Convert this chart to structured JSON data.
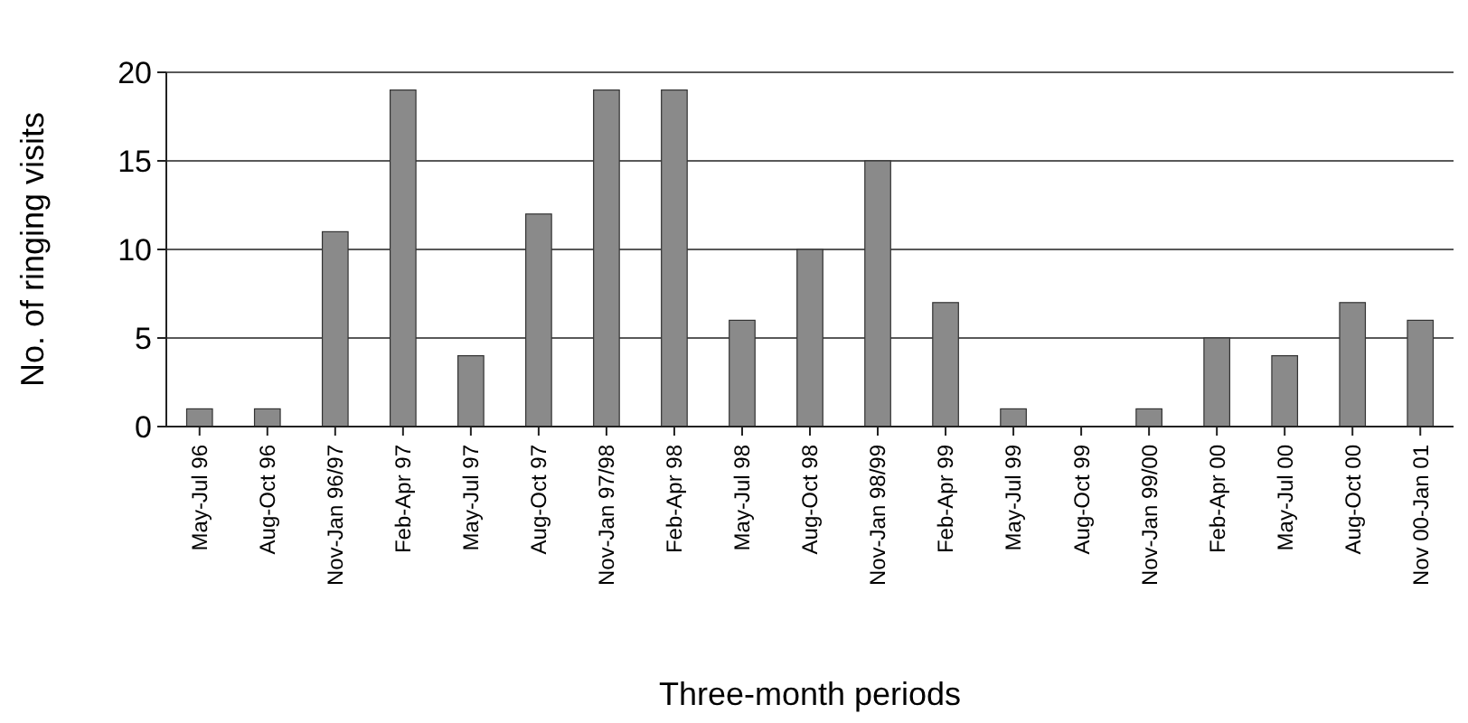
{
  "chart_data": {
    "type": "bar",
    "xlabel": "Three-month periods",
    "ylabel": "No. of ringing visits",
    "categories": [
      "May-Jul 96",
      "Aug-Oct 96",
      "Nov-Jan 96/97",
      "Feb-Apr 97",
      "May-Jul 97",
      "Aug-Oct 97",
      "Nov-Jan 97/98",
      "Feb-Apr 98",
      "May-Jul 98",
      "Aug-Oct 98",
      "Nov-Jan 98/99",
      "Feb-Apr 99",
      "May-Jul 99",
      "Aug-Oct 99",
      "Nov-Jan 99/00",
      "Feb-Apr 00",
      "May-Jul 00",
      "Aug-Oct 00",
      "Nov 00-Jan 01"
    ],
    "values": [
      1,
      1,
      11,
      19,
      4,
      12,
      19,
      19,
      6,
      10,
      15,
      7,
      1,
      0,
      1,
      5,
      4,
      7,
      6
    ],
    "color": "#8a8a8a",
    "ylim": [
      0,
      20
    ],
    "yticks": [
      0,
      5,
      10,
      15,
      20
    ],
    "grid": "y"
  }
}
